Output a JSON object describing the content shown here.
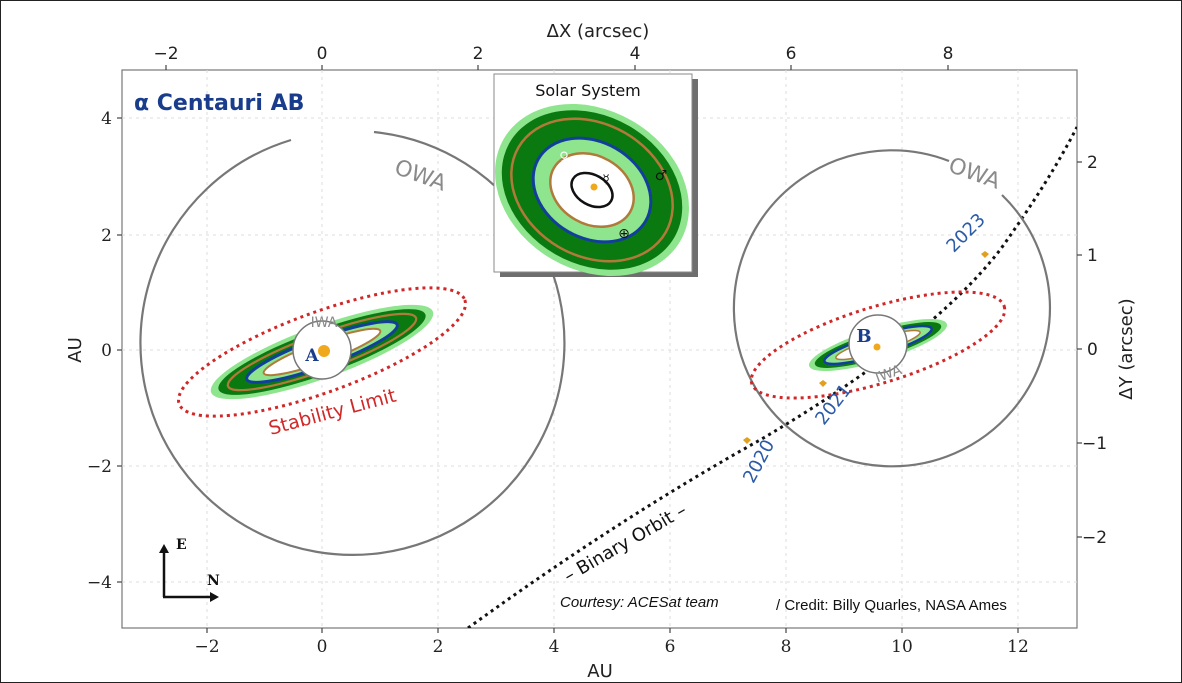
{
  "title": "α Centauri AB",
  "top_axis_label": "ΔX (arcsec)",
  "bottom_axis_label": "AU",
  "left_axis_label": "AU",
  "right_axis_label": "ΔY (arcsec)",
  "bottom_ticks": [
    "−2",
    "0",
    "2",
    "4",
    "6",
    "8",
    "10",
    "12"
  ],
  "left_ticks": [
    "4",
    "2",
    "0",
    "−2",
    "−4"
  ],
  "top_ticks": [
    "−2",
    "0",
    "2",
    "4",
    "6",
    "8"
  ],
  "right_ticks": [
    "2",
    "1",
    "0",
    "−1",
    "−2"
  ],
  "labels": {
    "owa_a": "OWA",
    "owa_b": "OWA",
    "iwa_a": "IWA",
    "iwa_b": "IWA",
    "star_a": "A",
    "star_b": "B",
    "stability": "Stability Limit",
    "binary_orbit": "– Binary Orbit –",
    "inset_title": "Solar System",
    "year_2020": "2020",
    "year_2021": "2021",
    "year_2023": "2023",
    "courtesy": "Courtesy:  ACESat team",
    "credit": "/ Credit: Billy Quarles, NASA Ames",
    "compass_e": "E",
    "compass_n": "N"
  },
  "planet_symbols": [
    "♀",
    "♂",
    "⊕",
    "☿"
  ],
  "colors": {
    "hz_dark": "#0a7a10",
    "hz_light": "#8ee58e",
    "orbit_blue": "#123f9a",
    "orbit_brown": "#b07a3a",
    "stability_red": "#d02828",
    "star": "#f0a81c",
    "title_blue": "#1a3c8c",
    "year_blue": "#2a5aa8",
    "owa_gray": "#7a7a7a"
  }
}
